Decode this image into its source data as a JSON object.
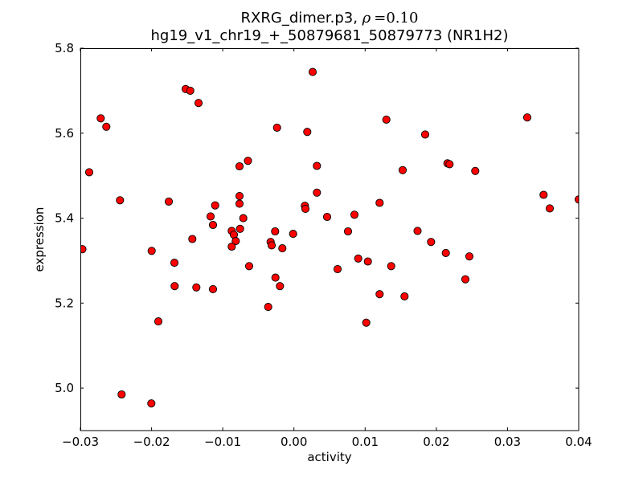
{
  "figure": {
    "title": {
      "prefix": "RXRG_dimer.p3, ",
      "rho": "ρ",
      "equals": "=0.10",
      "line2": "hg19_v1_chr19_+_50879681_50879773 (NR1H2)"
    }
  },
  "chart_data": {
    "type": "scatter",
    "title": "RXRG_dimer.p3, ρ=0.10",
    "subtitle": "hg19_v1_chr19_+_50879681_50879773 (NR1H2)",
    "xlabel": "activity",
    "ylabel": "expression",
    "xlim": [
      -0.03,
      0.04
    ],
    "ylim": [
      4.9,
      5.8
    ],
    "xticks": [
      -0.03,
      -0.02,
      -0.01,
      0.0,
      0.01,
      0.02,
      0.03,
      0.04
    ],
    "xtick_labels": [
      "−0.03",
      "−0.02",
      "−0.01",
      "0.00",
      "0.01",
      "0.02",
      "0.03",
      "0.04"
    ],
    "yticks": [
      5.0,
      5.2,
      5.4,
      5.6,
      5.8
    ],
    "ytick_labels": [
      "5.0",
      "5.2",
      "5.4",
      "5.6",
      "5.8"
    ],
    "grid": false,
    "legend": null,
    "marker": {
      "shape": "circle",
      "fill": "#ff0000",
      "edge": "#000000",
      "radius_px": 4.6
    },
    "series": [
      {
        "name": "expression-vs-activity",
        "points": [
          [
            -0.01521,
            5.704
          ],
          [
            -0.01457,
            5.7
          ],
          [
            -0.0134,
            5.671
          ],
          [
            -0.02714,
            5.635
          ],
          [
            -0.02635,
            5.615
          ],
          [
            -0.02876,
            5.508
          ],
          [
            -0.00765,
            5.522
          ],
          [
            -0.00646,
            5.535
          ],
          [
            0.00263,
            5.744
          ],
          [
            0.01298,
            5.632
          ],
          [
            -0.00237,
            5.613
          ],
          [
            0.00187,
            5.603
          ],
          [
            0.00323,
            5.523
          ],
          [
            0.01527,
            5.513
          ],
          [
            0.03277,
            5.637
          ],
          [
            0.01844,
            5.597
          ],
          [
            0.02156,
            5.529
          ],
          [
            0.02186,
            5.527
          ],
          [
            0.02547,
            5.511
          ],
          [
            -0.02443,
            5.442
          ],
          [
            -0.01758,
            5.439
          ],
          [
            -0.00765,
            5.452
          ],
          [
            -0.00765,
            5.434
          ],
          [
            -0.01107,
            5.43
          ],
          [
            -0.01171,
            5.404
          ],
          [
            -0.00711,
            5.4
          ],
          [
            -0.01137,
            5.384
          ],
          [
            -0.00874,
            5.37
          ],
          [
            -0.00757,
            5.375
          ],
          [
            -0.00844,
            5.361
          ],
          [
            -0.00818,
            5.346
          ],
          [
            -0.00874,
            5.333
          ],
          [
            -0.01427,
            5.351
          ],
          [
            -0.02972,
            5.327
          ],
          [
            -0.01999,
            5.323
          ],
          [
            -0.01679,
            5.295
          ],
          [
            -0.00629,
            5.287
          ],
          [
            -0.01676,
            5.24
          ],
          [
            -0.01371,
            5.237
          ],
          [
            -0.01137,
            5.233
          ],
          [
            0.00323,
            5.46
          ],
          [
            0.00153,
            5.429
          ],
          [
            0.00161,
            5.422
          ],
          [
            0.00466,
            5.403
          ],
          [
            0.0085,
            5.408
          ],
          [
            0.01203,
            5.436
          ],
          [
            0.0076,
            5.369
          ],
          [
            -0.00264,
            5.369
          ],
          [
            -0.00012,
            5.363
          ],
          [
            -0.00328,
            5.344
          ],
          [
            -0.00313,
            5.336
          ],
          [
            -0.00163,
            5.329
          ],
          [
            0.00613,
            5.28
          ],
          [
            0.00903,
            5.305
          ],
          [
            0.01039,
            5.298
          ],
          [
            0.01366,
            5.287
          ],
          [
            -0.0026,
            5.26
          ],
          [
            -0.00197,
            5.24
          ],
          [
            0.01203,
            5.221
          ],
          [
            0.01553,
            5.216
          ],
          [
            -0.00362,
            5.191
          ],
          [
            0.03507,
            5.455
          ],
          [
            0.03594,
            5.423
          ],
          [
            0.04,
            5.444
          ],
          [
            0.01736,
            5.37
          ],
          [
            0.01926,
            5.344
          ],
          [
            0.02134,
            5.318
          ],
          [
            0.02465,
            5.31
          ],
          [
            0.02408,
            5.256
          ],
          [
            -0.01905,
            5.157
          ],
          [
            -0.02421,
            4.985
          ],
          [
            -0.02003,
            4.964
          ],
          [
            0.01016,
            5.154
          ]
        ]
      }
    ]
  }
}
